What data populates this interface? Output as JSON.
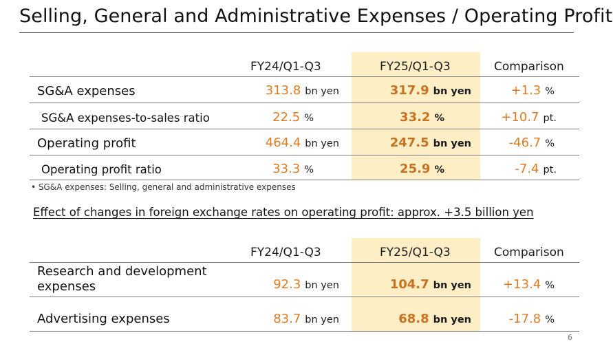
{
  "title": "Selling, General and Administrative Expenses / Operating Profit",
  "table1": {
    "headers": [
      "FY24/Q1-Q3",
      "FY25/Q1-Q3",
      "Comparison"
    ],
    "rows": [
      {
        "label": "SG&A expenses",
        "v1": "313.8",
        "u1": "bn yen",
        "v2": "317.9",
        "u2": "bn yen",
        "v3": "+1.3",
        "u3": "%"
      },
      {
        "label": "SG&A expenses-to-sales ratio",
        "v1": "22.5",
        "u1": "%",
        "v2": "33.2",
        "u2": "%",
        "v3": "+10.7",
        "u3": "pt."
      },
      {
        "label": "Operating profit",
        "v1": "464.4",
        "u1": "bn yen",
        "v2": "247.5",
        "u2": "bn yen",
        "v3": "-46.7",
        "u3": "%"
      },
      {
        "label": "Operating profit ratio",
        "v1": "33.3",
        "u1": "%",
        "v2": "25.9",
        "u2": "%",
        "v3": "-7.4",
        "u3": "pt."
      }
    ]
  },
  "note": "•  SG&A expenses: Selling, general and administrative expenses",
  "fx_effect": "Effect of changes in foreign exchange rates on operating profit: approx. +3.5 billion yen",
  "table2": {
    "headers": [
      "FY24/Q1-Q3",
      "FY25/Q1-Q3",
      "Comparison"
    ],
    "rows": [
      {
        "label_line1": "Research and development",
        "label_line2": "expenses",
        "v1": "92.3",
        "u1": "bn yen",
        "v2": "104.7",
        "u2": "bn yen",
        "v3": "+13.4",
        "u3": "%"
      },
      {
        "label": "Advertising expenses",
        "v1": "83.7",
        "u1": "bn yen",
        "v2": "68.8",
        "u2": "bn yen",
        "v3": "-17.8",
        "u3": "%"
      }
    ]
  },
  "page_number": "6",
  "colors": {
    "value_orange": "#e07b20",
    "highlight": "#fdeec6"
  }
}
